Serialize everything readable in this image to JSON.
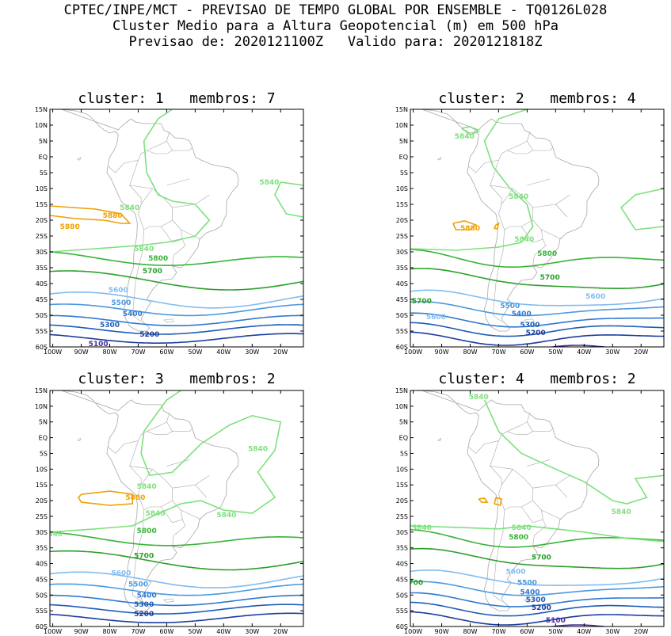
{
  "header": {
    "line1": "CPTEC/INPE/MCT - PREVISAO DE TEMPO GLOBAL POR ENSEMBLE - TQ0126L028",
    "line2": "Cluster Medio para a Altura Geopotencial (m) em 500 hPa",
    "line3": "Previsao de: 2020121100Z   Valido para: 2020121818Z"
  },
  "axes": {
    "lat_labels": [
      "15N",
      "10N",
      "5N",
      "EQ",
      "5S",
      "10S",
      "15S",
      "20S",
      "25S",
      "30S",
      "35S",
      "40S",
      "45S",
      "50S",
      "55S",
      "60S"
    ],
    "lon_labels": [
      "100W",
      "90W",
      "80W",
      "70W",
      "60W",
      "50W",
      "40W",
      "30W",
      "20W"
    ]
  },
  "colors": {
    "5100": "#4b2ea0",
    "5200": "#1c3c9c",
    "5300": "#1e5cb8",
    "5400": "#2e78d0",
    "5500": "#4a98e0",
    "5600": "#82bcf0",
    "5700": "#2aa02a",
    "5800": "#36b436",
    "5840": "#7ee07e",
    "5880": "#f0a000",
    "coast": "#a8a8a8"
  },
  "panels": [
    {
      "title": "cluster: 1   membros: 7",
      "labels": [
        {
          "t": "5840",
          "lon": -73,
          "lat": -16
        },
        {
          "t": "5880",
          "lon": -79,
          "lat": -18.5
        },
        {
          "t": "5880",
          "lon": -94,
          "lat": -22
        },
        {
          "t": "5840",
          "lon": -24,
          "lat": -8
        },
        {
          "t": "5840",
          "lon": -68,
          "lat": -29
        },
        {
          "t": "5800",
          "lon": -63,
          "lat": -32
        },
        {
          "t": "5700",
          "lon": -65,
          "lat": -36
        },
        {
          "t": "5600",
          "lon": -77,
          "lat": -42
        },
        {
          "t": "5500",
          "lon": -76,
          "lat": -46
        },
        {
          "t": "5400",
          "lon": -72,
          "lat": -49.5
        },
        {
          "t": "5300",
          "lon": -80,
          "lat": -53
        },
        {
          "t": "5200",
          "lon": -66,
          "lat": -56
        },
        {
          "t": "5100",
          "lon": -84,
          "lat": -59
        }
      ]
    },
    {
      "title": "cluster: 2   membros: 4",
      "labels": [
        {
          "t": "5840",
          "lon": -82,
          "lat": 6.5
        },
        {
          "t": "5840",
          "lon": -63,
          "lat": -12.5
        },
        {
          "t": "5880",
          "lon": -80,
          "lat": -22.5
        },
        {
          "t": "5840",
          "lon": -61,
          "lat": -26
        },
        {
          "t": "5800",
          "lon": -53,
          "lat": -30.5
        },
        {
          "t": "5700",
          "lon": -52,
          "lat": -38
        },
        {
          "t": "5700",
          "lon": -97,
          "lat": -45.5
        },
        {
          "t": "5600",
          "lon": -36,
          "lat": -44
        },
        {
          "t": "5600",
          "lon": -92,
          "lat": -50.5
        },
        {
          "t": "5500",
          "lon": -66,
          "lat": -47
        },
        {
          "t": "5400",
          "lon": -62,
          "lat": -49.5
        },
        {
          "t": "5300",
          "lon": -59,
          "lat": -53
        },
        {
          "t": "5200",
          "lon": -57,
          "lat": -55.5
        }
      ]
    },
    {
      "title": "cluster: 3   membros: 2",
      "labels": [
        {
          "t": "5840",
          "lon": -28,
          "lat": -3.5
        },
        {
          "t": "5840",
          "lon": -67,
          "lat": -15.5
        },
        {
          "t": "5880",
          "lon": -71,
          "lat": -19
        },
        {
          "t": "5840",
          "lon": -64,
          "lat": -24
        },
        {
          "t": "5840",
          "lon": -39,
          "lat": -24.5
        },
        {
          "t": "5840",
          "lon": -100,
          "lat": -30.5
        },
        {
          "t": "5800",
          "lon": -67,
          "lat": -29.5
        },
        {
          "t": "5700",
          "lon": -68,
          "lat": -37.5
        },
        {
          "t": "5600",
          "lon": -76,
          "lat": -43
        },
        {
          "t": "5500",
          "lon": -70,
          "lat": -46.5
        },
        {
          "t": "5400",
          "lon": -67,
          "lat": -50
        },
        {
          "t": "5300",
          "lon": -68,
          "lat": -53
        },
        {
          "t": "5200",
          "lon": -68,
          "lat": -56
        }
      ]
    },
    {
      "title": "cluster: 4   membros: 2",
      "labels": [
        {
          "t": "5840",
          "lon": -77,
          "lat": 13
        },
        {
          "t": "5840",
          "lon": -27,
          "lat": -23.5
        },
        {
          "t": "5840",
          "lon": -97,
          "lat": -28.5
        },
        {
          "t": "5840",
          "lon": -62,
          "lat": -28.5
        },
        {
          "t": "5800",
          "lon": -63,
          "lat": -31.5
        },
        {
          "t": "5700",
          "lon": -55,
          "lat": -38
        },
        {
          "t": "5700",
          "lon": -100,
          "lat": -46
        },
        {
          "t": "5600",
          "lon": -64,
          "lat": -42.5
        },
        {
          "t": "5500",
          "lon": -60,
          "lat": -46
        },
        {
          "t": "5400",
          "lon": -59,
          "lat": -49
        },
        {
          "t": "5300",
          "lon": -57,
          "lat": -51.5
        },
        {
          "t": "5200",
          "lon": -55,
          "lat": -54
        },
        {
          "t": "5100",
          "lon": -50,
          "lat": -58
        }
      ]
    }
  ]
}
